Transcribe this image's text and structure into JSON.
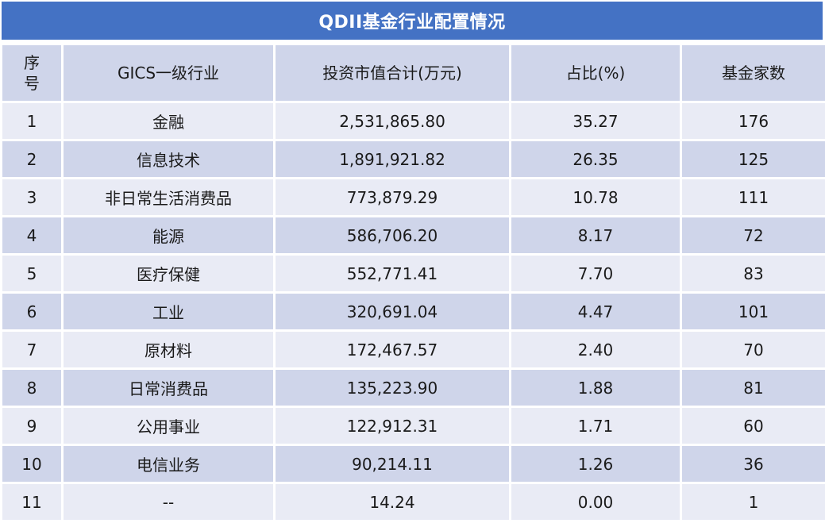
{
  "title": "QDII基金行业配置情况",
  "headers": {
    "seq": "序\n号",
    "industry": "GICS一级行业",
    "market_value": "投资市值合计(万元)",
    "ratio": "占比(%)",
    "fund_count": "基金家数"
  },
  "rows": [
    {
      "seq": "1",
      "industry": "金融",
      "market_value": "2,531,865.80",
      "ratio": "35.27",
      "fund_count": "176"
    },
    {
      "seq": "2",
      "industry": "信息技术",
      "market_value": "1,891,921.82",
      "ratio": "26.35",
      "fund_count": "125"
    },
    {
      "seq": "3",
      "industry": "非日常生活消费品",
      "market_value": "773,879.29",
      "ratio": "10.78",
      "fund_count": "111"
    },
    {
      "seq": "4",
      "industry": "能源",
      "market_value": "586,706.20",
      "ratio": "8.17",
      "fund_count": "72"
    },
    {
      "seq": "5",
      "industry": "医疗保健",
      "market_value": "552,771.41",
      "ratio": "7.70",
      "fund_count": "83"
    },
    {
      "seq": "6",
      "industry": "工业",
      "market_value": "320,691.04",
      "ratio": "4.47",
      "fund_count": "101"
    },
    {
      "seq": "7",
      "industry": "原材料",
      "market_value": "172,467.57",
      "ratio": "2.40",
      "fund_count": "70"
    },
    {
      "seq": "8",
      "industry": "日常消费品",
      "market_value": "135,223.90",
      "ratio": "1.88",
      "fund_count": "81"
    },
    {
      "seq": "9",
      "industry": "公用事业",
      "market_value": "122,912.31",
      "ratio": "1.71",
      "fund_count": "60"
    },
    {
      "seq": "10",
      "industry": "电信业务",
      "market_value": "90,214.11",
      "ratio": "1.26",
      "fund_count": "36"
    },
    {
      "seq": "11",
      "industry": "--",
      "market_value": "14.24",
      "ratio": "0.00",
      "fund_count": "1"
    }
  ],
  "colors": {
    "title_bg": "#4472c4",
    "header_bg": "#cfd5ea",
    "row_light": "#e9ebf5",
    "row_dark": "#cfd5ea"
  }
}
